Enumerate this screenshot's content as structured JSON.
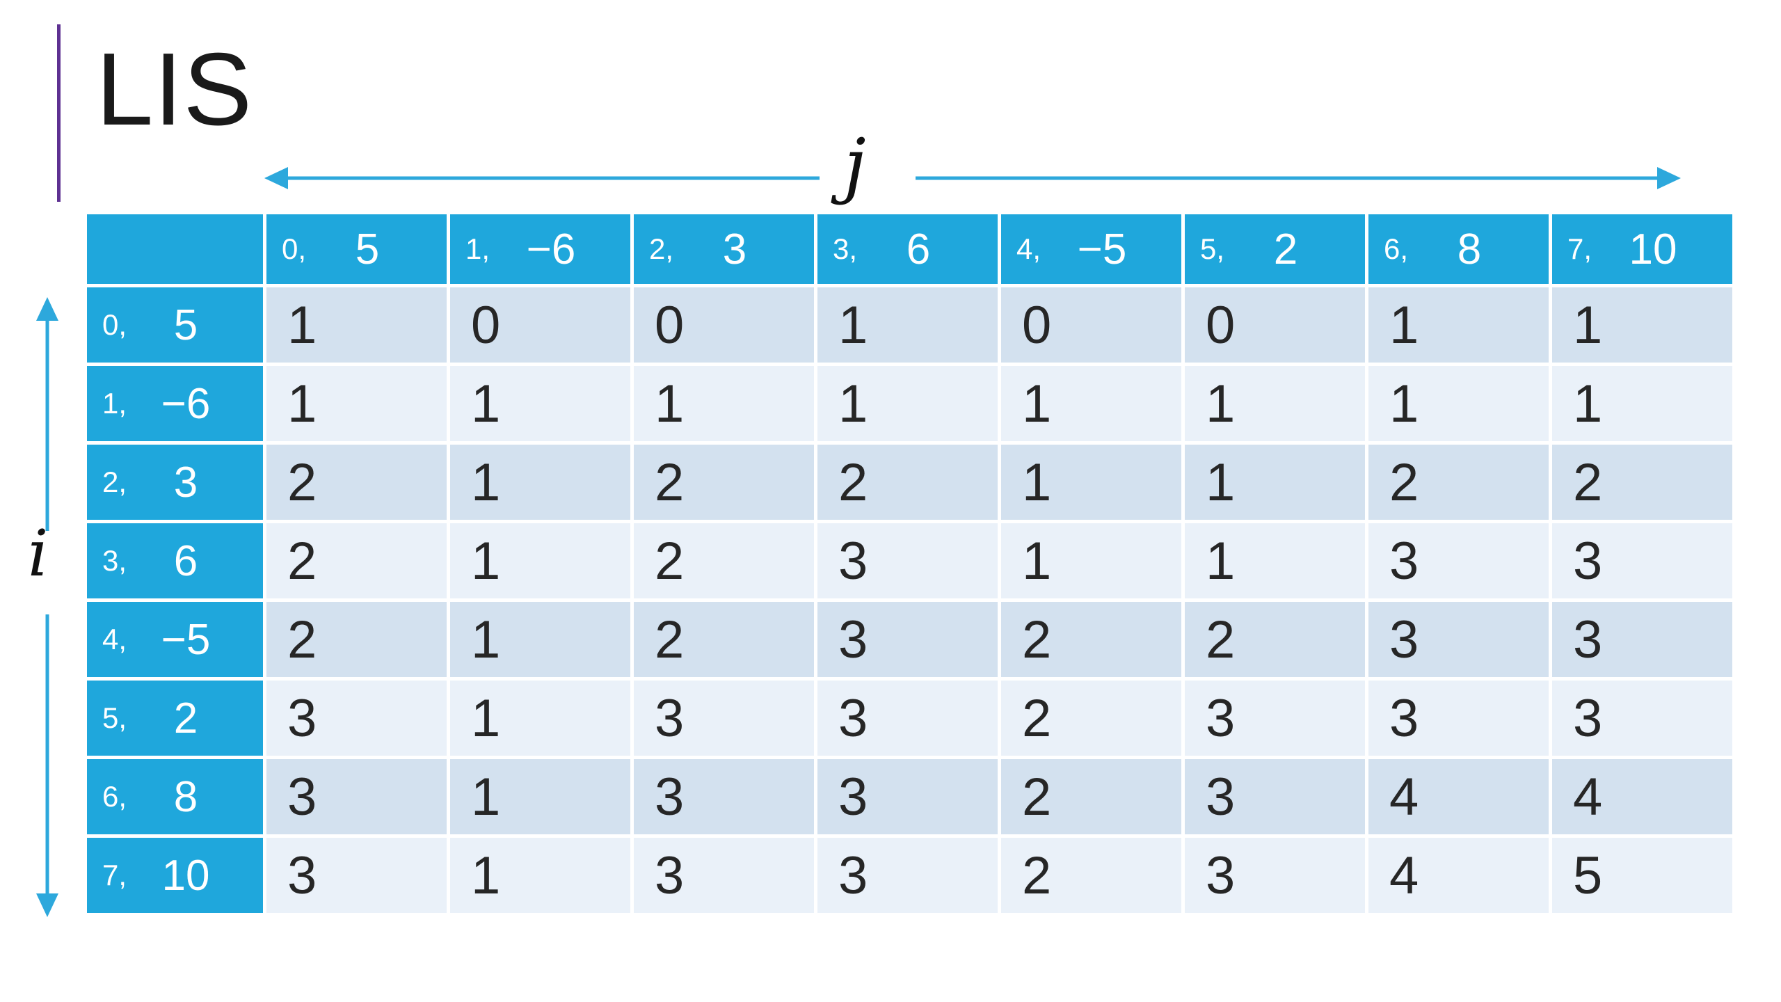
{
  "title": "LIS",
  "axes": {
    "j_label": "j",
    "i_label": "i"
  },
  "colors": {
    "accent_purple": "#5e3192",
    "header_blue": "#1fa7dc",
    "arrow_blue": "#2da8dc",
    "row_band_dark": "#d3e1ef",
    "row_band_light": "#eaf1f9",
    "cell_text": "#262626",
    "header_text": "#ffffff"
  },
  "table": {
    "col_headers": [
      {
        "index": "0,",
        "value": "5"
      },
      {
        "index": "1,",
        "value": "−6"
      },
      {
        "index": "2,",
        "value": "3"
      },
      {
        "index": "3,",
        "value": "6"
      },
      {
        "index": "4,",
        "value": "−5"
      },
      {
        "index": "5,",
        "value": "2"
      },
      {
        "index": "6,",
        "value": "8"
      },
      {
        "index": "7,",
        "value": "10"
      }
    ],
    "rows": [
      {
        "header": {
          "index": "0,",
          "value": "5"
        },
        "cells": [
          "1",
          "0",
          "0",
          "1",
          "0",
          "0",
          "1",
          "1"
        ]
      },
      {
        "header": {
          "index": "1,",
          "value": "−6"
        },
        "cells": [
          "1",
          "1",
          "1",
          "1",
          "1",
          "1",
          "1",
          "1"
        ]
      },
      {
        "header": {
          "index": "2,",
          "value": "3"
        },
        "cells": [
          "2",
          "1",
          "2",
          "2",
          "1",
          "1",
          "2",
          "2"
        ]
      },
      {
        "header": {
          "index": "3,",
          "value": "6"
        },
        "cells": [
          "2",
          "1",
          "2",
          "3",
          "1",
          "1",
          "3",
          "3"
        ]
      },
      {
        "header": {
          "index": "4,",
          "value": "−5"
        },
        "cells": [
          "2",
          "1",
          "2",
          "3",
          "2",
          "2",
          "3",
          "3"
        ]
      },
      {
        "header": {
          "index": "5,",
          "value": "2"
        },
        "cells": [
          "3",
          "1",
          "3",
          "3",
          "2",
          "3",
          "3",
          "3"
        ]
      },
      {
        "header": {
          "index": "6,",
          "value": "8"
        },
        "cells": [
          "3",
          "1",
          "3",
          "3",
          "2",
          "3",
          "4",
          "4"
        ]
      },
      {
        "header": {
          "index": "7,",
          "value": "10"
        },
        "cells": [
          "3",
          "1",
          "3",
          "3",
          "2",
          "3",
          "4",
          "5"
        ]
      }
    ]
  }
}
